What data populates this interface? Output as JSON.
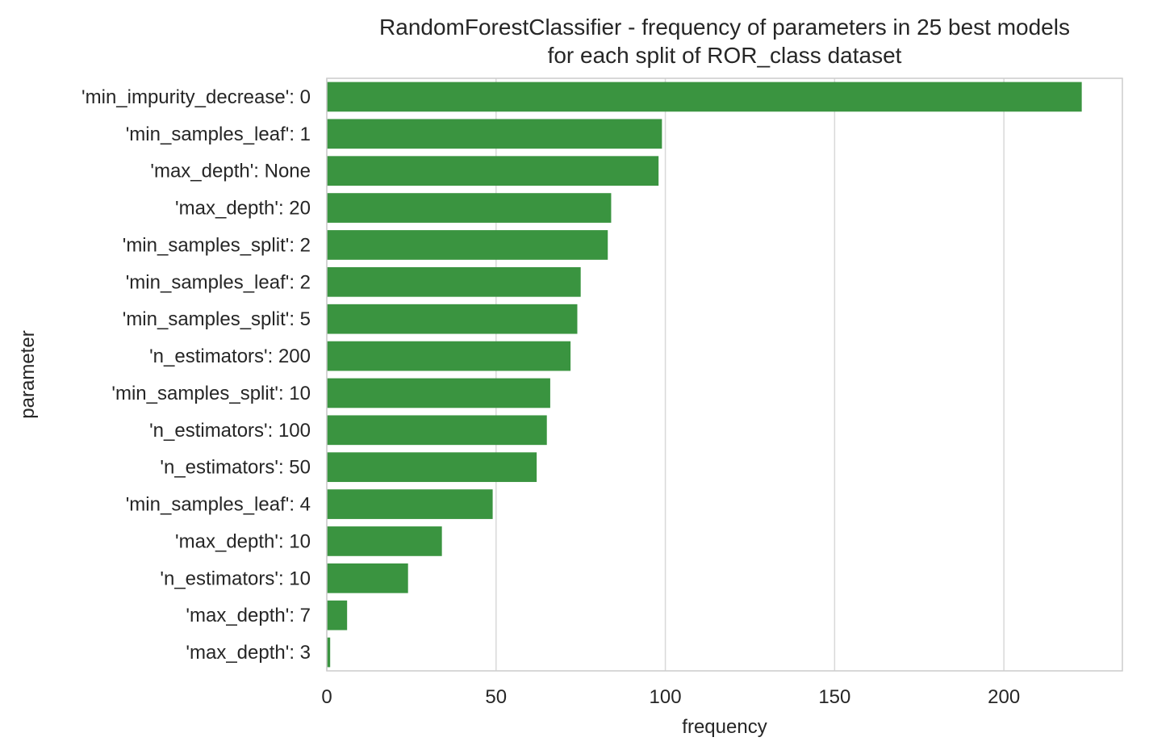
{
  "chart_data": {
    "type": "bar",
    "orientation": "horizontal",
    "title": [
      "RandomForestClassifier - frequency of parameters in 25 best models",
      "for each split of ROR_class dataset"
    ],
    "xlabel": "frequency",
    "ylabel": "parameter",
    "xlim": [
      0,
      235
    ],
    "xticks": [
      0,
      50,
      100,
      150,
      200
    ],
    "grid": "vertical",
    "bar_color": "#3a9440",
    "categories": [
      "'min_impurity_decrease': 0",
      "'min_samples_leaf': 1",
      "'max_depth': None",
      "'max_depth': 20",
      "'min_samples_split': 2",
      "'min_samples_leaf': 2",
      "'min_samples_split': 5",
      "'n_estimators': 200",
      "'min_samples_split': 10",
      "'n_estimators': 100",
      "'n_estimators': 50",
      "'min_samples_leaf': 4",
      "'max_depth': 10",
      "'n_estimators': 10",
      "'max_depth': 7",
      "'max_depth': 3"
    ],
    "values": [
      223,
      99,
      98,
      84,
      83,
      75,
      74,
      72,
      66,
      65,
      62,
      49,
      34,
      24,
      6,
      1
    ]
  }
}
